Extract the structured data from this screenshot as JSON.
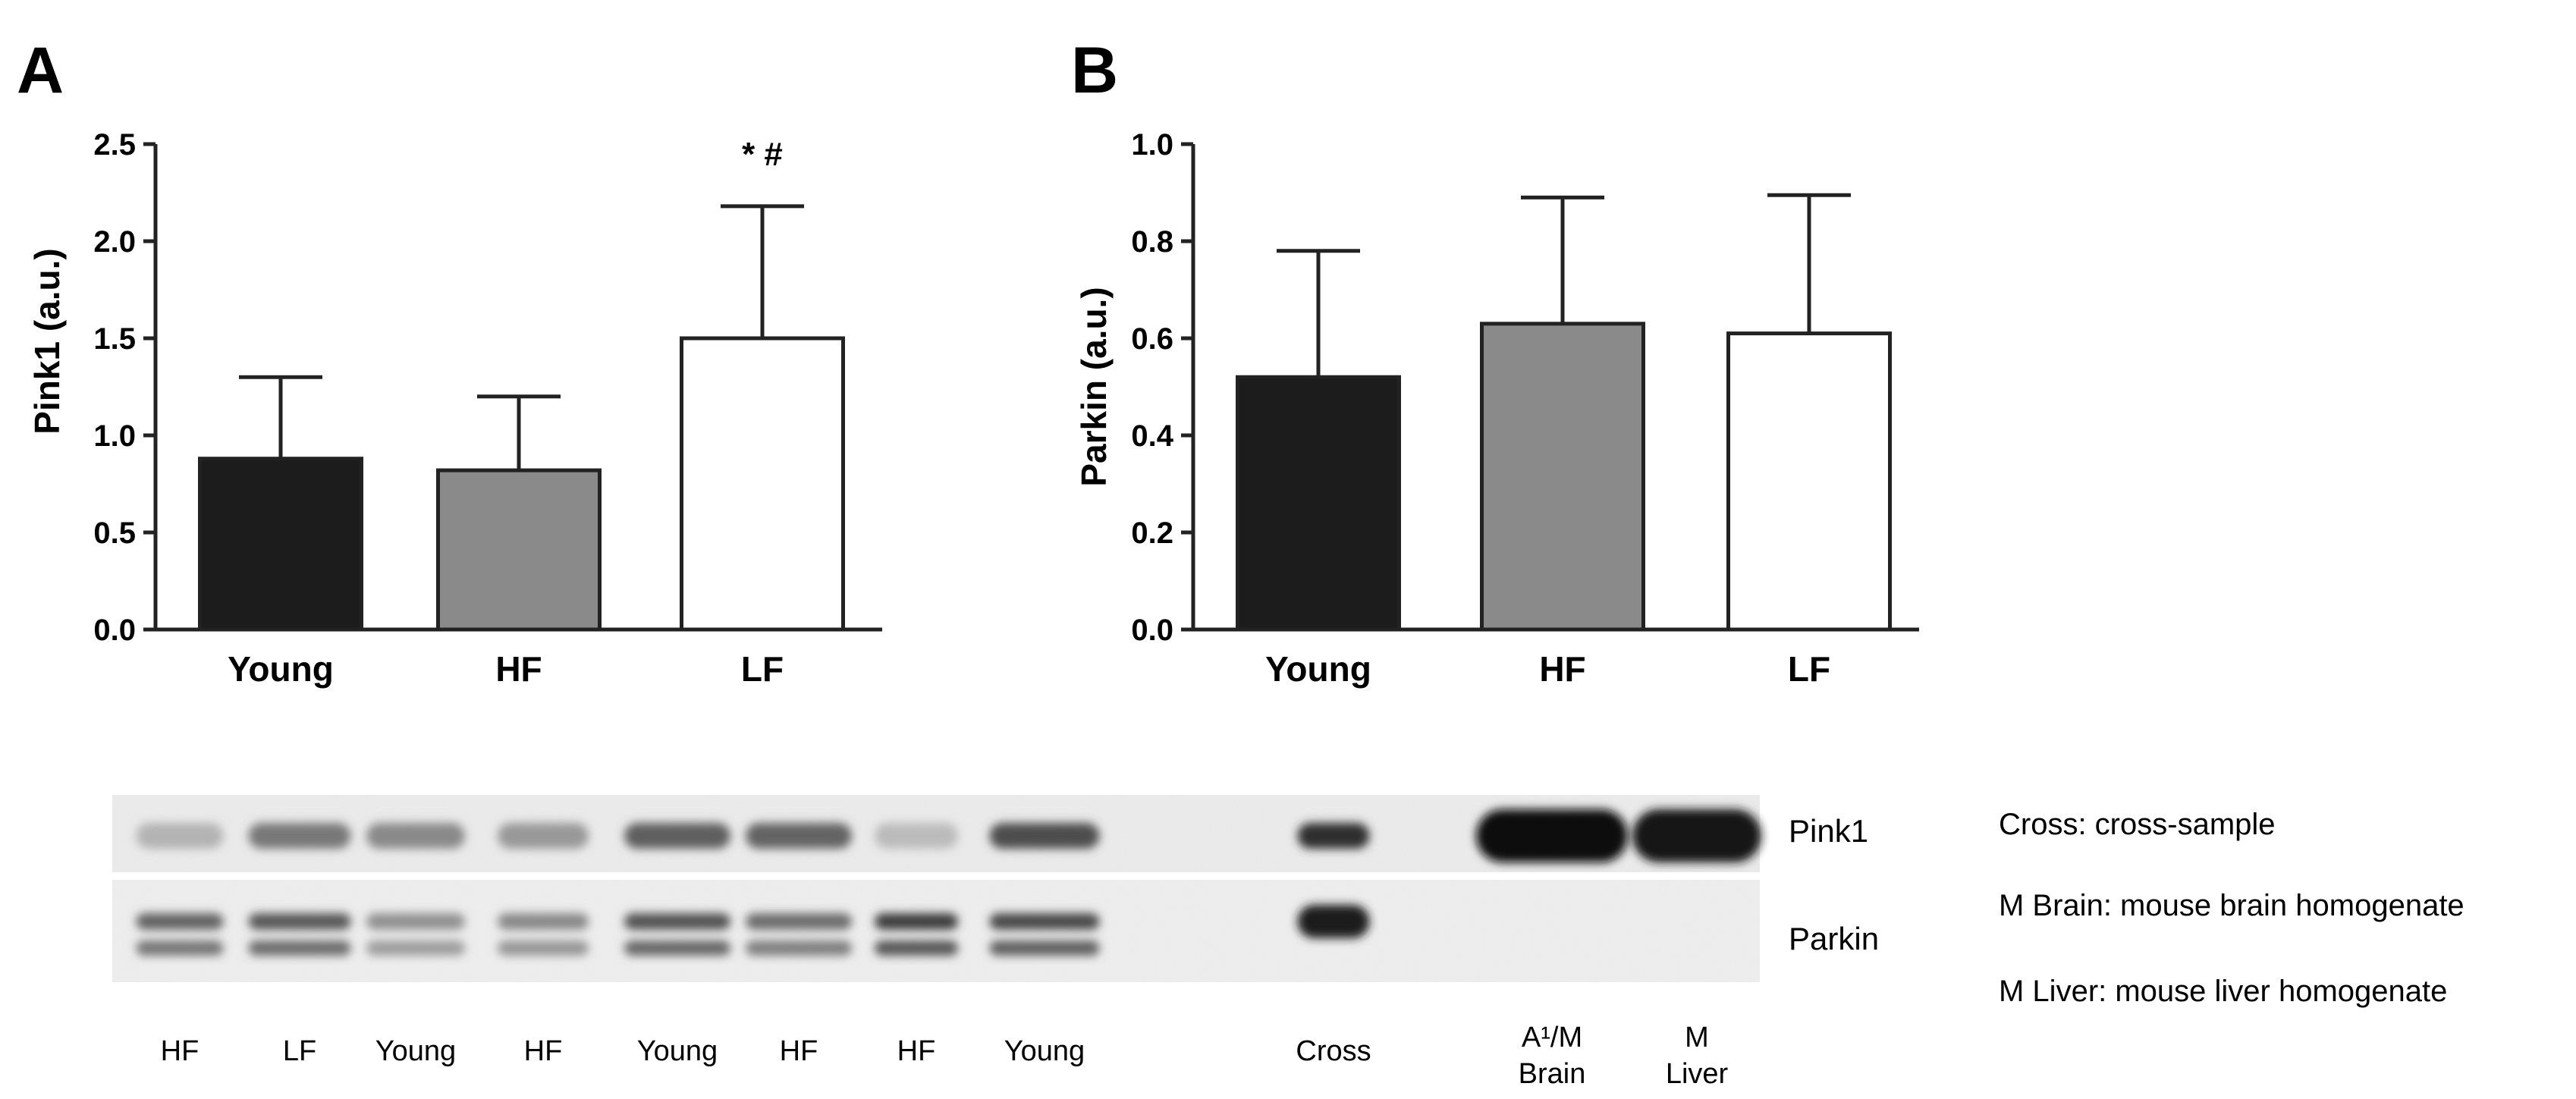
{
  "chart_data": [
    {
      "type": "bar",
      "panel_label": "A",
      "ylabel": "Pink1 (a.u.)",
      "xlabel": "",
      "categories": [
        "Young",
        "HF",
        "LF"
      ],
      "values": [
        0.88,
        0.82,
        1.5
      ],
      "errors": [
        0.42,
        0.38,
        0.68
      ],
      "ylim": [
        0,
        2.5
      ],
      "yticks": [
        "0.0",
        "0.5",
        "1.0",
        "1.5",
        "2.0",
        "2.5"
      ],
      "bar_colors": [
        "#1c1c1c",
        "#8a8a8a",
        "#ffffff"
      ],
      "annotations": [
        {
          "category": "LF",
          "text": "* #"
        }
      ],
      "grid": false
    },
    {
      "type": "bar",
      "panel_label": "B",
      "ylabel": "Parkin (a.u.)",
      "xlabel": "",
      "categories": [
        "Young",
        "HF",
        "LF"
      ],
      "values": [
        0.52,
        0.63,
        0.61
      ],
      "errors": [
        0.26,
        0.26,
        0.285
      ],
      "ylim": [
        0,
        1.0
      ],
      "yticks": [
        "0.0",
        "0.2",
        "0.4",
        "0.6",
        "0.8",
        "1.0"
      ],
      "bar_colors": [
        "#1c1c1c",
        "#8a8a8a",
        "#ffffff"
      ],
      "annotations": [],
      "grid": false
    }
  ],
  "blot": {
    "row_labels": [
      "Pink1",
      "Parkin"
    ],
    "lanes": [
      {
        "label": "HF",
        "pink1": 0.22,
        "parkin": 0.6
      },
      {
        "label": "LF",
        "pink1": 0.5,
        "parkin": 0.65
      },
      {
        "label": "Young",
        "pink1": 0.42,
        "parkin": 0.38
      },
      {
        "label": "HF",
        "pink1": 0.35,
        "parkin": 0.42
      },
      {
        "label": "Young",
        "pink1": 0.62,
        "parkin": 0.68
      },
      {
        "label": "HF",
        "pink1": 0.6,
        "parkin": 0.55
      },
      {
        "label": "HF",
        "pink1": 0.18,
        "parkin": 0.78
      },
      {
        "label": "Young",
        "pink1": 0.7,
        "parkin": 0.72
      },
      {
        "label": "Cross",
        "pink1": 0.85,
        "parkin": 0.95
      },
      {
        "label_line1": "A¹/M",
        "label_line2": "Brain",
        "pink1": 1.0,
        "parkin": 0.0
      },
      {
        "label_line1": "M",
        "label_line2": "Liver",
        "pink1": 0.98,
        "parkin": 0.0
      }
    ],
    "legend": [
      "Cross: cross-sample",
      "M Brain: mouse brain homogenate",
      "M Liver: mouse liver homogenate"
    ]
  }
}
